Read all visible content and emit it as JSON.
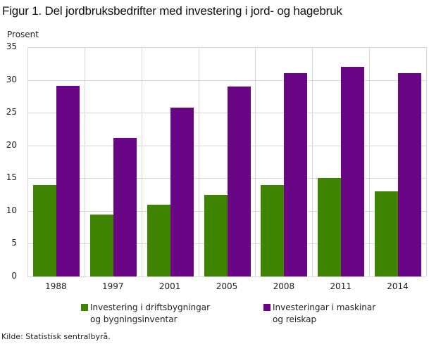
{
  "title": "Figur 1. Del jordbruksbedrifter med investering i jord- og hagebruk",
  "ylabel": "Prosent",
  "source": "Kilde: Statistisk sentralbyrå.",
  "colors": {
    "series1": "#3f8400",
    "series2": "#690685",
    "grid": "#d9d9d9"
  },
  "legend": [
    {
      "line1": "Investering i driftsbygningar",
      "line2": "og bygningsinventar",
      "color": "#3f8400"
    },
    {
      "line1": "Investeringar i maskinar",
      "line2": "og reiskap",
      "color": "#690685"
    }
  ],
  "chart_data": {
    "type": "bar",
    "title": "Figur 1. Del jordbruksbedrifter med investering i jord- og hagebruk",
    "xlabel": "",
    "ylabel": "Prosent",
    "ylim": [
      0,
      35
    ],
    "yticks": [
      0,
      5,
      10,
      15,
      20,
      25,
      30,
      35
    ],
    "grid": true,
    "legend_position": "bottom",
    "categories": [
      "1988",
      "1997",
      "2001",
      "2005",
      "2008",
      "2011",
      "2014"
    ],
    "series": [
      {
        "name": "Investering i driftsbygningar og bygningsinventar",
        "color": "#3f8400",
        "values": [
          14.0,
          9.4,
          11.0,
          12.5,
          14.0,
          15.0,
          13.0
        ]
      },
      {
        "name": "Investeringar i maskinar og reiskap",
        "color": "#690685",
        "values": [
          29.1,
          21.2,
          25.8,
          29.0,
          31.0,
          32.0,
          31.0
        ]
      }
    ]
  }
}
